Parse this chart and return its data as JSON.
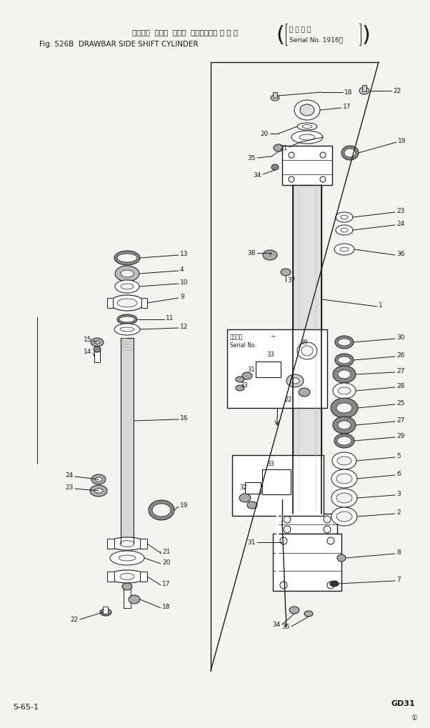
{
  "title_jp": "ドローバ  サイド  シフト  シリンダ（適 用 号 機",
  "title_en": "Fig. 526B  DRAWBAR SIDE SHIFT CYLINDER",
  "title_serial_top": "適 用 号 機",
  "title_serial_bot": "Serial No. 1916～",
  "footer_left": "5-65-1",
  "footer_right": "GD31",
  "bg_color": "#f5f3ef",
  "line_color": "#1a1a1a"
}
